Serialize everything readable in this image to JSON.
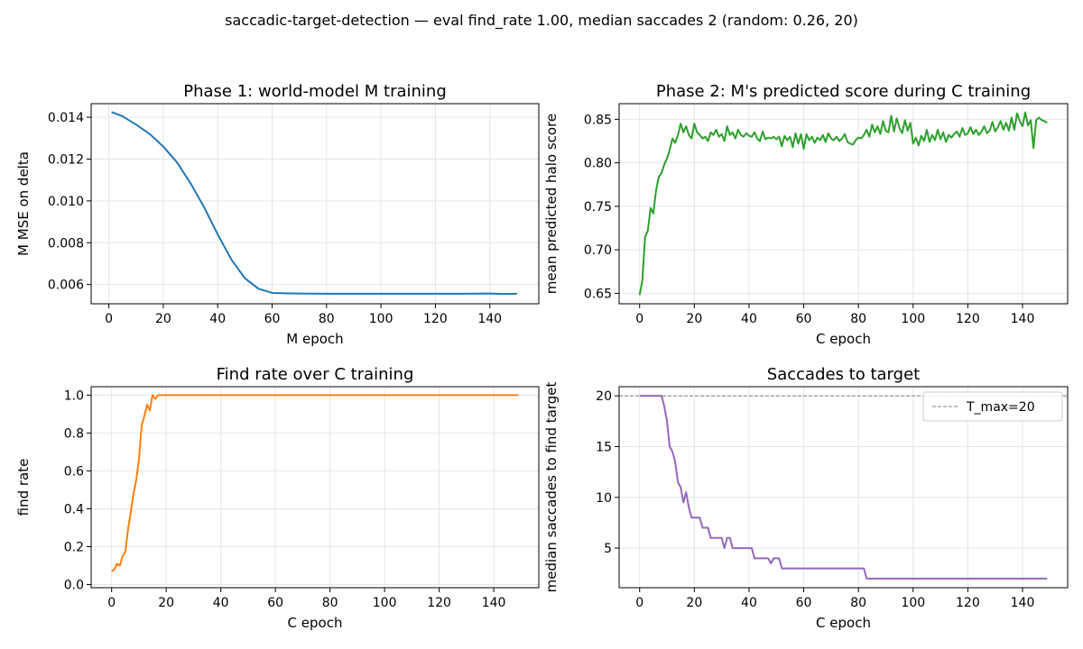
{
  "figure": {
    "suptitle": "saccadic-target-detection — eval find_rate 1.00, median saccades 2 (random: 0.26, 20)"
  },
  "colors": {
    "phase1_line": "#1f77b4",
    "phase2_line": "#2ca02c",
    "findrate_line": "#ff7f0e",
    "saccades_line": "#9467bd",
    "tmax_line": "#808080",
    "grid": "#e6e6e6"
  },
  "chart_data": [
    {
      "id": "phase1",
      "type": "line",
      "title": "Phase 1: world-model M training",
      "xlabel": "M epoch",
      "ylabel": "M MSE on delta",
      "xlim": [
        -6.5,
        158
      ],
      "ylim": [
        0.00508,
        0.01465
      ],
      "xticks": [
        0,
        20,
        40,
        60,
        80,
        100,
        120,
        140
      ],
      "xtick_labels": [
        "0",
        "20",
        "40",
        "60",
        "80",
        "100",
        "120",
        "140"
      ],
      "yticks": [
        0.006,
        0.008,
        0.01,
        0.012,
        0.014
      ],
      "ytick_labels": [
        "0.006",
        "0.008",
        "0.010",
        "0.012",
        "0.014"
      ],
      "grid": true,
      "series": [
        {
          "color": "#1f77b4",
          "x": [
            1,
            5,
            10,
            15,
            20,
            25,
            30,
            35,
            40,
            45,
            50,
            55,
            60,
            65,
            70,
            80,
            90,
            100,
            110,
            120,
            130,
            140,
            145,
            150
          ],
          "y": [
            0.01425,
            0.01405,
            0.01365,
            0.0132,
            0.0126,
            0.01185,
            0.01085,
            0.0097,
            0.0084,
            0.0072,
            0.0063,
            0.0058,
            0.0056,
            0.00558,
            0.00557,
            0.00556,
            0.00556,
            0.00556,
            0.00556,
            0.00556,
            0.00556,
            0.00557,
            0.00555,
            0.00556
          ]
        }
      ]
    },
    {
      "id": "phase2",
      "type": "line",
      "title": "Phase 2: M's predicted score during C training",
      "xlabel": "C epoch",
      "ylabel": "mean predicted halo score",
      "xlim": [
        -7.5,
        156.5
      ],
      "ylim": [
        0.638,
        0.868
      ],
      "xticks": [
        0,
        20,
        40,
        60,
        80,
        100,
        120,
        140
      ],
      "xtick_labels": [
        "0",
        "20",
        "40",
        "60",
        "80",
        "100",
        "120",
        "140"
      ],
      "yticks": [
        0.65,
        0.7,
        0.75,
        0.8,
        0.85
      ],
      "ytick_labels": [
        "0.65",
        "0.70",
        "0.75",
        "0.80",
        "0.85"
      ],
      "grid": true,
      "series": [
        {
          "color": "#2ca02c",
          "x": [
            0,
            1,
            2,
            3,
            4,
            5,
            6,
            7,
            8,
            9,
            10,
            11,
            12,
            13,
            14,
            15,
            16,
            17,
            18,
            19,
            20,
            21,
            22,
            23,
            24,
            25,
            26,
            27,
            28,
            29,
            30,
            31,
            32,
            33,
            34,
            35,
            36,
            37,
            38,
            39,
            40,
            41,
            42,
            43,
            44,
            45,
            46,
            47,
            48,
            49,
            50,
            51,
            52,
            53,
            54,
            55,
            56,
            57,
            58,
            59,
            60,
            61,
            62,
            63,
            64,
            65,
            66,
            67,
            68,
            69,
            70,
            71,
            72,
            73,
            74,
            75,
            76,
            77,
            78,
            79,
            80,
            81,
            82,
            83,
            84,
            85,
            86,
            87,
            88,
            89,
            90,
            91,
            92,
            93,
            94,
            95,
            96,
            97,
            98,
            99,
            100,
            101,
            102,
            103,
            104,
            105,
            106,
            107,
            108,
            109,
            110,
            111,
            112,
            113,
            114,
            115,
            116,
            117,
            118,
            119,
            120,
            121,
            122,
            123,
            124,
            125,
            126,
            127,
            128,
            129,
            130,
            131,
            132,
            133,
            134,
            135,
            136,
            137,
            138,
            139,
            140,
            141,
            142,
            143,
            144,
            145,
            146,
            147,
            148,
            149
          ],
          "y": [
            0.648,
            0.665,
            0.715,
            0.722,
            0.748,
            0.742,
            0.768,
            0.784,
            0.788,
            0.798,
            0.805,
            0.815,
            0.828,
            0.823,
            0.832,
            0.845,
            0.835,
            0.842,
            0.832,
            0.828,
            0.845,
            0.835,
            0.832,
            0.828,
            0.83,
            0.825,
            0.835,
            0.832,
            0.838,
            0.83,
            0.833,
            0.825,
            0.842,
            0.832,
            0.835,
            0.828,
            0.838,
            0.832,
            0.83,
            0.834,
            0.831,
            0.83,
            0.835,
            0.828,
            0.825,
            0.836,
            0.827,
            0.829,
            0.828,
            0.83,
            0.827,
            0.83,
            0.819,
            0.831,
            0.826,
            0.83,
            0.818,
            0.834,
            0.822,
            0.833,
            0.816,
            0.833,
            0.826,
            0.83,
            0.823,
            0.829,
            0.826,
            0.832,
            0.824,
            0.834,
            0.828,
            0.826,
            0.83,
            0.825,
            0.828,
            0.833,
            0.824,
            0.822,
            0.821,
            0.826,
            0.829,
            0.828,
            0.832,
            0.838,
            0.83,
            0.844,
            0.835,
            0.842,
            0.833,
            0.848,
            0.837,
            0.835,
            0.854,
            0.836,
            0.851,
            0.84,
            0.834,
            0.849,
            0.837,
            0.846,
            0.822,
            0.829,
            0.82,
            0.831,
            0.825,
            0.838,
            0.824,
            0.832,
            0.826,
            0.838,
            0.827,
            0.835,
            0.824,
            0.832,
            0.829,
            0.833,
            0.836,
            0.83,
            0.84,
            0.832,
            0.834,
            0.841,
            0.833,
            0.838,
            0.832,
            0.836,
            0.842,
            0.834,
            0.837,
            0.847,
            0.836,
            0.841,
            0.848,
            0.838,
            0.846,
            0.837,
            0.852,
            0.838,
            0.857,
            0.848,
            0.842,
            0.858,
            0.843,
            0.849,
            0.817,
            0.849,
            0.852,
            0.849,
            0.848,
            0.846
          ]
        }
      ]
    },
    {
      "id": "findrate",
      "type": "line",
      "title": "Find rate over C training",
      "xlabel": "C epoch",
      "ylabel": "find rate",
      "xlim": [
        -7.5,
        156.5
      ],
      "ylim": [
        -0.0165,
        1.0445
      ],
      "xticks": [
        0,
        20,
        40,
        60,
        80,
        100,
        120,
        140
      ],
      "xtick_labels": [
        "0",
        "20",
        "40",
        "60",
        "80",
        "100",
        "120",
        "140"
      ],
      "yticks": [
        0.0,
        0.2,
        0.4,
        0.6,
        0.8,
        1.0
      ],
      "ytick_labels": [
        "0.0",
        "0.2",
        "0.4",
        "0.6",
        "0.8",
        "1.0"
      ],
      "grid": true,
      "series": [
        {
          "color": "#ff7f0e",
          "x": [
            0,
            1,
            2,
            3,
            4,
            5,
            6,
            7,
            8,
            9,
            10,
            11,
            12,
            13,
            14,
            15,
            16,
            17,
            18,
            20,
            40,
            60,
            80,
            100,
            120,
            140,
            149
          ],
          "y": [
            0.07,
            0.08,
            0.11,
            0.1,
            0.15,
            0.17,
            0.29,
            0.38,
            0.48,
            0.55,
            0.66,
            0.84,
            0.89,
            0.95,
            0.92,
            1.0,
            0.98,
            1.0,
            1.0,
            1.0,
            1.0,
            1.0,
            1.0,
            1.0,
            1.0,
            1.0,
            1.0
          ]
        }
      ]
    },
    {
      "id": "saccades",
      "type": "line",
      "title": "Saccades to target",
      "xlabel": "C epoch",
      "ylabel": "median saccades to find target",
      "xlim": [
        -7.5,
        156.5
      ],
      "ylim": [
        1.1,
        20.9
      ],
      "xticks": [
        0,
        20,
        40,
        60,
        80,
        100,
        120,
        140
      ],
      "xtick_labels": [
        "0",
        "20",
        "40",
        "60",
        "80",
        "100",
        "120",
        "140"
      ],
      "yticks": [
        5,
        10,
        15,
        20
      ],
      "ytick_labels": [
        "5",
        "10",
        "15",
        "20"
      ],
      "grid": true,
      "legend": {
        "location": "upper right",
        "entries": [
          "T_max=20"
        ]
      },
      "hline": {
        "y": 20,
        "label": "T_max=20",
        "color": "#808080",
        "style": "dashed"
      },
      "series": [
        {
          "color": "#9467bd",
          "x": [
            0,
            8,
            9,
            10,
            11,
            12,
            13,
            14,
            15,
            16,
            17,
            18,
            19,
            20,
            21,
            22,
            23,
            24,
            25,
            26,
            27,
            28,
            29,
            30,
            31,
            32,
            33,
            34,
            35,
            40,
            41,
            42,
            45,
            46,
            47,
            48,
            49,
            50,
            51,
            52,
            53,
            60,
            80,
            82,
            83,
            100,
            149
          ],
          "y": [
            20,
            20,
            19,
            17.5,
            15,
            14.5,
            13.5,
            11.5,
            11,
            9.5,
            10.5,
            9,
            8,
            8,
            8,
            8,
            7,
            7,
            7,
            6,
            6,
            6,
            6,
            6,
            5,
            6,
            6,
            5,
            5,
            5,
            5,
            4,
            4,
            4,
            4,
            3.5,
            4,
            4,
            4,
            3,
            3,
            3,
            3,
            3,
            2,
            2,
            2
          ]
        }
      ]
    }
  ]
}
